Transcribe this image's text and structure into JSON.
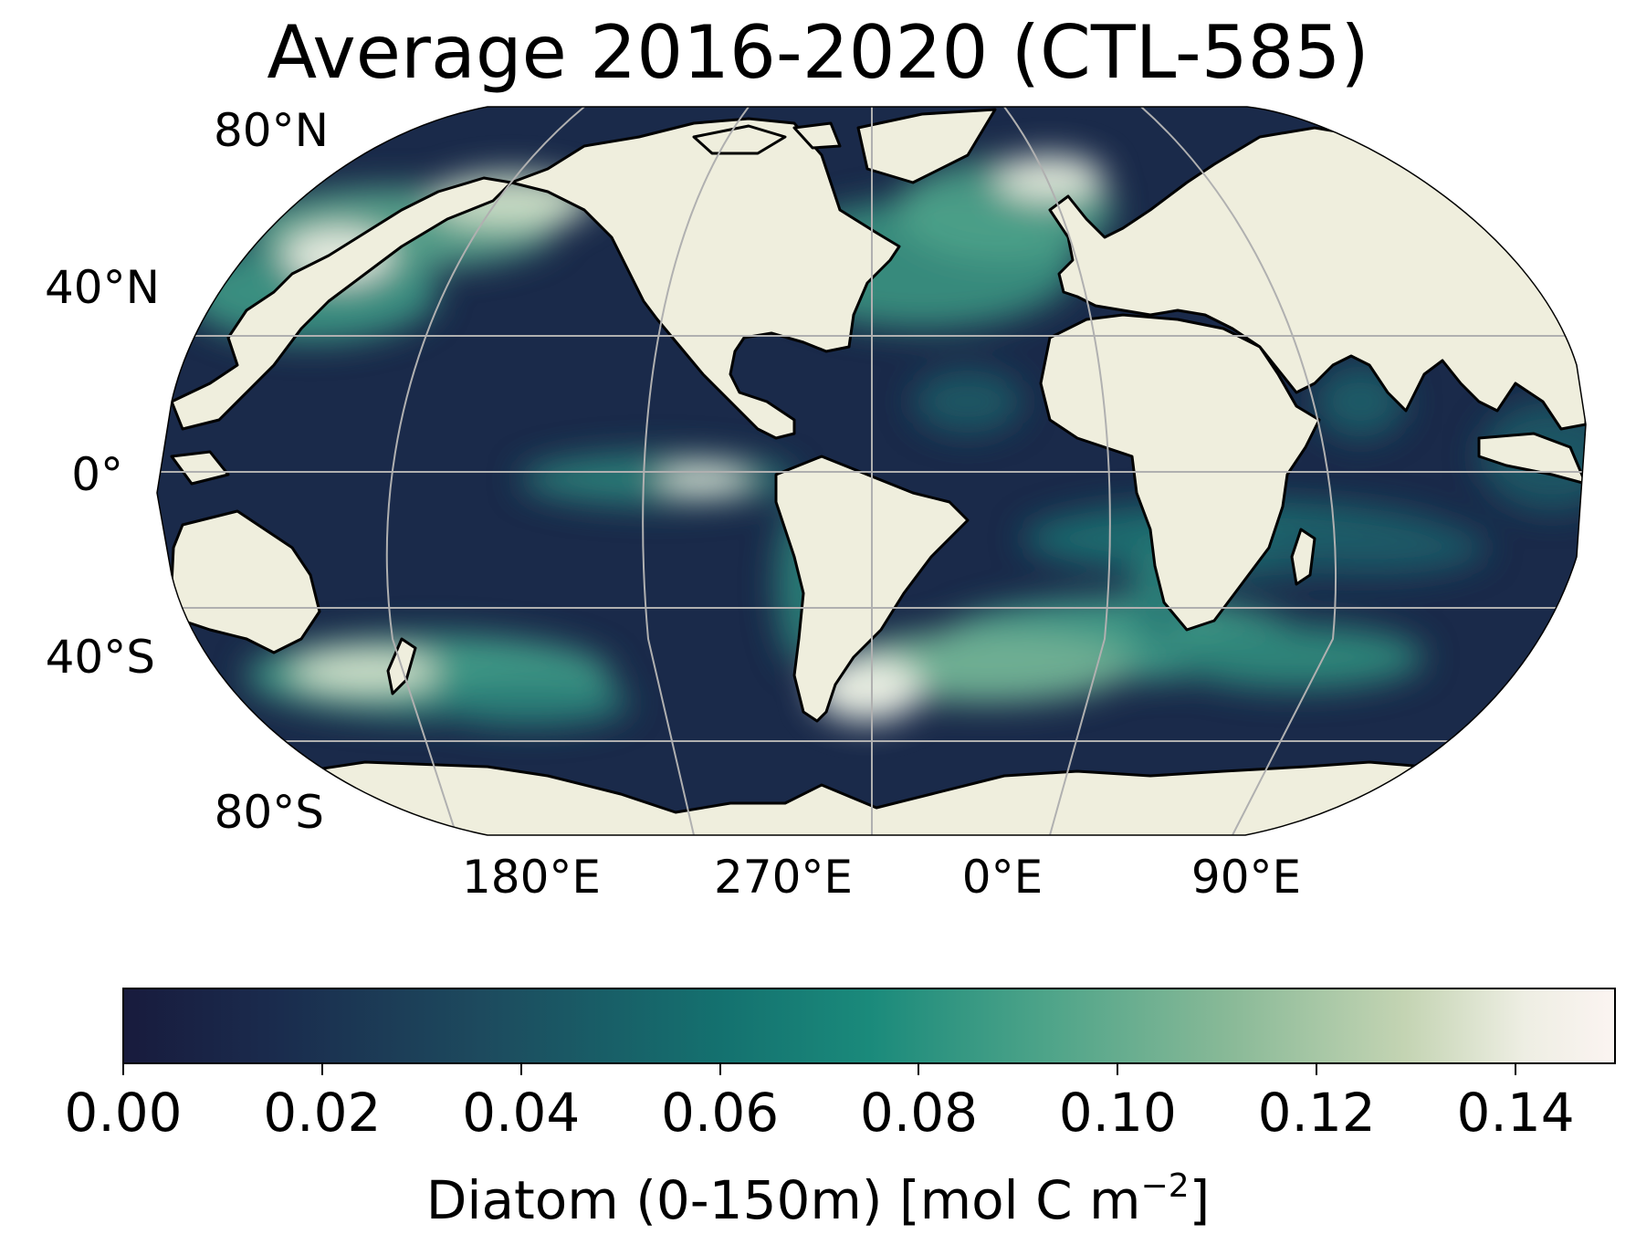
{
  "title": "Average 2016-2020 (CTL-585)",
  "map": {
    "projection": "robinson",
    "ocean_colormap": "cmocean-tempo-dark",
    "land_color": "#efeedd",
    "coastline_color": "#000000",
    "gridline_color": "#b0b0b0",
    "lat_labels": [
      {
        "name": "lat-80n",
        "text": "80°N"
      },
      {
        "name": "lat-40n",
        "text": "40°N"
      },
      {
        "name": "lat-0",
        "text": "0°"
      },
      {
        "name": "lat-40s",
        "text": "40°S"
      },
      {
        "name": "lat-80s",
        "text": "80°S"
      }
    ],
    "lon_labels": [
      {
        "name": "lon-180e",
        "text": "180°E"
      },
      {
        "name": "lon-270e",
        "text": "270°E"
      },
      {
        "name": "lon-0e",
        "text": "0°E"
      },
      {
        "name": "lon-90e",
        "text": "90°E"
      }
    ]
  },
  "colorbar": {
    "ticks": [
      "0.00",
      "0.02",
      "0.04",
      "0.06",
      "0.08",
      "0.10",
      "0.12",
      "0.14"
    ],
    "range": [
      0,
      0.15
    ],
    "label_main": "Diatom (0-150m) [mol C m",
    "label_exp": "−2",
    "label_end": "]",
    "colors": [
      "#181b3d",
      "#1d4a5e",
      "#14716f",
      "#4ea489",
      "#c4d4b3",
      "#fbf4f1"
    ]
  }
}
